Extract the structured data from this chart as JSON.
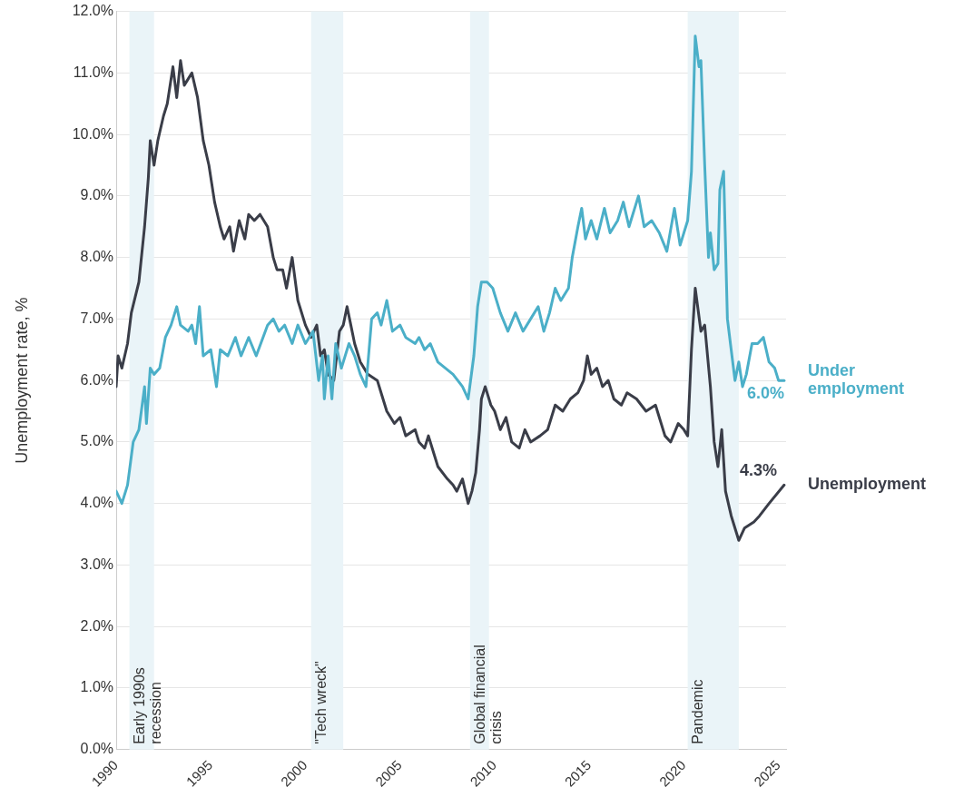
{
  "chart_data": {
    "type": "line",
    "ylabel": "Unemployment rate, %",
    "xlim": [
      1990,
      2025.4
    ],
    "xticks": [
      1990,
      1995,
      2000,
      2005,
      2010,
      2015,
      2020,
      2025
    ],
    "ylim": [
      0,
      12
    ],
    "yticks": [
      {
        "value": 0,
        "label": "0.0%"
      },
      {
        "value": 1,
        "label": "1.0%"
      },
      {
        "value": 2,
        "label": "2.0%"
      },
      {
        "value": 3,
        "label": "3.0%"
      },
      {
        "value": 4,
        "label": "4.0%"
      },
      {
        "value": 5,
        "label": "5.0%"
      },
      {
        "value": 6,
        "label": "6.0%"
      },
      {
        "value": 7,
        "label": "7.0%"
      },
      {
        "value": 8,
        "label": "8.0%"
      },
      {
        "value": 9,
        "label": "9.0%"
      },
      {
        "value": 10,
        "label": "10.0%"
      },
      {
        "value": 11,
        "label": "11.0%"
      },
      {
        "value": 12,
        "label": "12.0%"
      }
    ],
    "grid": "y",
    "legend": false,
    "marker": "none",
    "line_style": "solid",
    "bands": [
      {
        "axis": "x",
        "from": 1990.7,
        "to": 1992.0,
        "label": "Early 1990s\nrecession",
        "color": "#eaf4f8"
      },
      {
        "axis": "x",
        "from": 2000.3,
        "to": 2002.0,
        "label": "\"Tech wreck\"",
        "color": "#eaf4f8"
      },
      {
        "axis": "x",
        "from": 2008.7,
        "to": 2009.7,
        "label": "Global financial\ncrisis",
        "color": "#eaf4f8"
      },
      {
        "axis": "x",
        "from": 2020.2,
        "to": 2022.9,
        "label": "Pandemic",
        "color": "#eaf4f8"
      }
    ],
    "series": [
      {
        "name": "Under\nemployment",
        "color": "#4bafc8",
        "x": [
          1990.0,
          1990.3,
          1990.6,
          1990.9,
          1991.2,
          1991.5,
          1991.6,
          1991.8,
          1992.0,
          1992.3,
          1992.6,
          1992.9,
          1993.2,
          1993.4,
          1993.8,
          1994.0,
          1994.2,
          1994.4,
          1994.6,
          1995.0,
          1995.3,
          1995.5,
          1995.9,
          1996.3,
          1996.6,
          1997.0,
          1997.4,
          1998.0,
          1998.3,
          1998.6,
          1998.9,
          1999.3,
          1999.6,
          2000.0,
          2000.4,
          2000.7,
          2000.9,
          2001.0,
          2001.2,
          2001.4,
          2001.6,
          2001.9,
          2002.3,
          2002.6,
          2002.9,
          2003.2,
          2003.5,
          2003.8,
          2004.0,
          2004.3,
          2004.6,
          2005.0,
          2005.3,
          2005.8,
          2006.0,
          2006.3,
          2006.6,
          2007.0,
          2007.4,
          2007.8,
          2008.3,
          2008.6,
          2008.9,
          2009.1,
          2009.3,
          2009.6,
          2009.9,
          2010.3,
          2010.7,
          2011.1,
          2011.5,
          2011.9,
          2012.3,
          2012.6,
          2012.9,
          2013.2,
          2013.5,
          2013.9,
          2014.1,
          2014.4,
          2014.6,
          2014.8,
          2015.1,
          2015.4,
          2015.8,
          2016.1,
          2016.5,
          2016.8,
          2017.1,
          2017.6,
          2017.9,
          2018.3,
          2018.7,
          2019.1,
          2019.5,
          2019.8,
          2020.2,
          2020.4,
          2020.6,
          2020.8,
          2020.9,
          2021.1,
          2021.3,
          2021.4,
          2021.6,
          2021.8,
          2021.9,
          2022.1,
          2022.3,
          2022.5,
          2022.7,
          2022.9,
          2023.1,
          2023.3,
          2023.6,
          2023.9,
          2024.2,
          2024.5,
          2024.8,
          2025.0,
          2025.3
        ],
        "values": [
          4.2,
          4.0,
          4.3,
          5.0,
          5.2,
          5.9,
          5.3,
          6.2,
          6.1,
          6.2,
          6.7,
          6.9,
          7.2,
          6.9,
          6.8,
          6.9,
          6.6,
          7.2,
          6.4,
          6.5,
          5.9,
          6.5,
          6.4,
          6.7,
          6.4,
          6.7,
          6.4,
          6.9,
          7.0,
          6.8,
          6.9,
          6.6,
          6.9,
          6.6,
          6.8,
          6.0,
          6.4,
          5.7,
          6.4,
          5.7,
          6.6,
          6.2,
          6.6,
          6.4,
          6.1,
          5.9,
          7.0,
          7.1,
          6.9,
          7.3,
          6.8,
          6.9,
          6.7,
          6.6,
          6.7,
          6.5,
          6.6,
          6.3,
          6.2,
          6.1,
          5.9,
          5.7,
          6.4,
          7.2,
          7.6,
          7.6,
          7.5,
          7.1,
          6.8,
          7.1,
          6.8,
          7.0,
          7.2,
          6.8,
          7.1,
          7.5,
          7.3,
          7.5,
          8.0,
          8.5,
          8.8,
          8.3,
          8.6,
          8.3,
          8.8,
          8.4,
          8.6,
          8.9,
          8.5,
          9.0,
          8.5,
          8.6,
          8.4,
          8.1,
          8.8,
          8.2,
          8.6,
          9.4,
          11.6,
          11.1,
          11.2,
          9.5,
          8.0,
          8.4,
          7.8,
          7.9,
          9.1,
          9.4,
          7.0,
          6.5,
          6.0,
          6.3,
          5.9,
          6.1,
          6.6,
          6.6,
          6.7,
          6.3,
          6.2,
          6.0,
          6.0
        ],
        "value_labels": [
          null,
          null,
          null,
          null,
          null,
          null,
          null,
          null,
          null,
          null,
          null,
          null,
          null,
          null,
          null,
          null,
          null,
          null,
          null,
          null,
          null,
          null,
          null,
          null,
          null,
          null,
          null,
          null,
          null,
          null,
          null,
          null,
          null,
          null,
          null,
          null,
          null,
          null,
          null,
          null,
          null,
          null,
          null,
          null,
          null,
          null,
          null,
          null,
          null,
          null,
          null,
          null,
          null,
          null,
          null,
          null,
          null,
          null,
          null,
          null,
          null,
          null,
          null,
          null,
          null,
          null,
          null,
          null,
          null,
          null,
          null,
          null,
          null,
          null,
          null,
          null,
          null,
          null,
          null,
          null,
          null,
          null,
          null,
          null,
          null,
          null,
          null,
          null,
          null,
          null,
          null,
          null,
          null,
          null,
          null,
          null,
          null,
          null,
          null,
          null,
          null,
          null,
          null,
          null,
          null,
          null,
          null,
          null,
          null,
          null,
          null,
          null,
          null,
          null,
          null,
          null,
          null,
          null,
          null,
          null,
          "6.0%"
        ]
      },
      {
        "name": "Unemployment",
        "color": "#3a3d48",
        "x": [
          1990.0,
          1990.1,
          1990.3,
          1990.6,
          1990.8,
          1991.2,
          1991.5,
          1991.7,
          1991.8,
          1992.0,
          1992.2,
          1992.5,
          1992.7,
          1993.0,
          1993.2,
          1993.4,
          1993.6,
          1994.0,
          1994.3,
          1994.6,
          1994.9,
          1995.2,
          1995.5,
          1995.7,
          1996.0,
          1996.2,
          1996.5,
          1996.8,
          1997.0,
          1997.3,
          1997.6,
          1998.0,
          1998.3,
          1998.5,
          1998.8,
          1999.0,
          1999.3,
          1999.6,
          2000.0,
          2000.3,
          2000.6,
          2000.8,
          2001.0,
          2001.2,
          2001.5,
          2001.8,
          2002.0,
          2002.2,
          2002.4,
          2002.6,
          2002.9,
          2003.3,
          2003.8,
          2004.0,
          2004.3,
          2004.7,
          2005.0,
          2005.3,
          2005.8,
          2006.0,
          2006.3,
          2006.5,
          2006.8,
          2007.0,
          2007.5,
          2007.8,
          2008.0,
          2008.3,
          2008.6,
          2008.8,
          2009.0,
          2009.2,
          2009.3,
          2009.5,
          2009.8,
          2010.0,
          2010.3,
          2010.6,
          2010.9,
          2011.3,
          2011.6,
          2011.9,
          2012.4,
          2012.8,
          2013.2,
          2013.6,
          2014.0,
          2014.4,
          2014.7,
          2014.9,
          2015.1,
          2015.4,
          2015.7,
          2016.0,
          2016.3,
          2016.7,
          2017.0,
          2017.5,
          2018.0,
          2018.5,
          2019.0,
          2019.3,
          2019.7,
          2020.0,
          2020.2,
          2020.4,
          2020.6,
          2020.9,
          2021.1,
          2021.4,
          2021.6,
          2021.8,
          2022.0,
          2022.2,
          2022.5,
          2022.8,
          2022.9,
          2023.2,
          2023.7,
          2024.0,
          2024.5,
          2025.3
        ],
        "values": [
          5.9,
          6.4,
          6.2,
          6.6,
          7.1,
          7.6,
          8.5,
          9.3,
          9.9,
          9.5,
          9.9,
          10.3,
          10.5,
          11.1,
          10.6,
          11.2,
          10.8,
          11.0,
          10.6,
          9.9,
          9.5,
          8.9,
          8.5,
          8.3,
          8.5,
          8.1,
          8.6,
          8.3,
          8.7,
          8.6,
          8.7,
          8.5,
          8.0,
          7.8,
          7.8,
          7.5,
          8.0,
          7.3,
          6.9,
          6.7,
          6.9,
          6.4,
          6.5,
          6.1,
          6.0,
          6.8,
          6.9,
          7.2,
          6.9,
          6.6,
          6.3,
          6.1,
          6.0,
          5.8,
          5.5,
          5.3,
          5.4,
          5.1,
          5.2,
          5.0,
          4.9,
          5.1,
          4.8,
          4.6,
          4.4,
          4.3,
          4.2,
          4.4,
          4.0,
          4.2,
          4.5,
          5.2,
          5.7,
          5.9,
          5.6,
          5.5,
          5.2,
          5.4,
          5.0,
          4.9,
          5.2,
          5.0,
          5.1,
          5.2,
          5.6,
          5.5,
          5.7,
          5.8,
          6.0,
          6.4,
          6.1,
          6.2,
          5.9,
          6.0,
          5.7,
          5.6,
          5.8,
          5.7,
          5.5,
          5.6,
          5.1,
          5.0,
          5.3,
          5.2,
          5.1,
          6.5,
          7.5,
          6.8,
          6.9,
          5.9,
          5.0,
          4.6,
          5.2,
          4.2,
          3.8,
          3.5,
          3.4,
          3.6,
          3.7,
          3.8,
          4.0,
          4.3
        ],
        "value_labels": [
          null,
          null,
          null,
          null,
          null,
          null,
          null,
          null,
          null,
          null,
          null,
          null,
          null,
          null,
          null,
          null,
          null,
          null,
          null,
          null,
          null,
          null,
          null,
          null,
          null,
          null,
          null,
          null,
          null,
          null,
          null,
          null,
          null,
          null,
          null,
          null,
          null,
          null,
          null,
          null,
          null,
          null,
          null,
          null,
          null,
          null,
          null,
          null,
          null,
          null,
          null,
          null,
          null,
          null,
          null,
          null,
          null,
          null,
          null,
          null,
          null,
          null,
          null,
          null,
          null,
          null,
          null,
          null,
          null,
          null,
          null,
          null,
          null,
          null,
          null,
          null,
          null,
          null,
          null,
          null,
          null,
          null,
          null,
          null,
          null,
          null,
          null,
          null,
          null,
          null,
          null,
          null,
          null,
          null,
          null,
          null,
          null,
          null,
          null,
          null,
          null,
          null,
          null,
          null,
          null,
          null,
          null,
          null,
          null,
          null,
          null,
          null,
          null,
          null,
          null,
          null,
          null,
          null,
          null,
          null,
          null,
          "4.3%"
        ]
      }
    ]
  }
}
